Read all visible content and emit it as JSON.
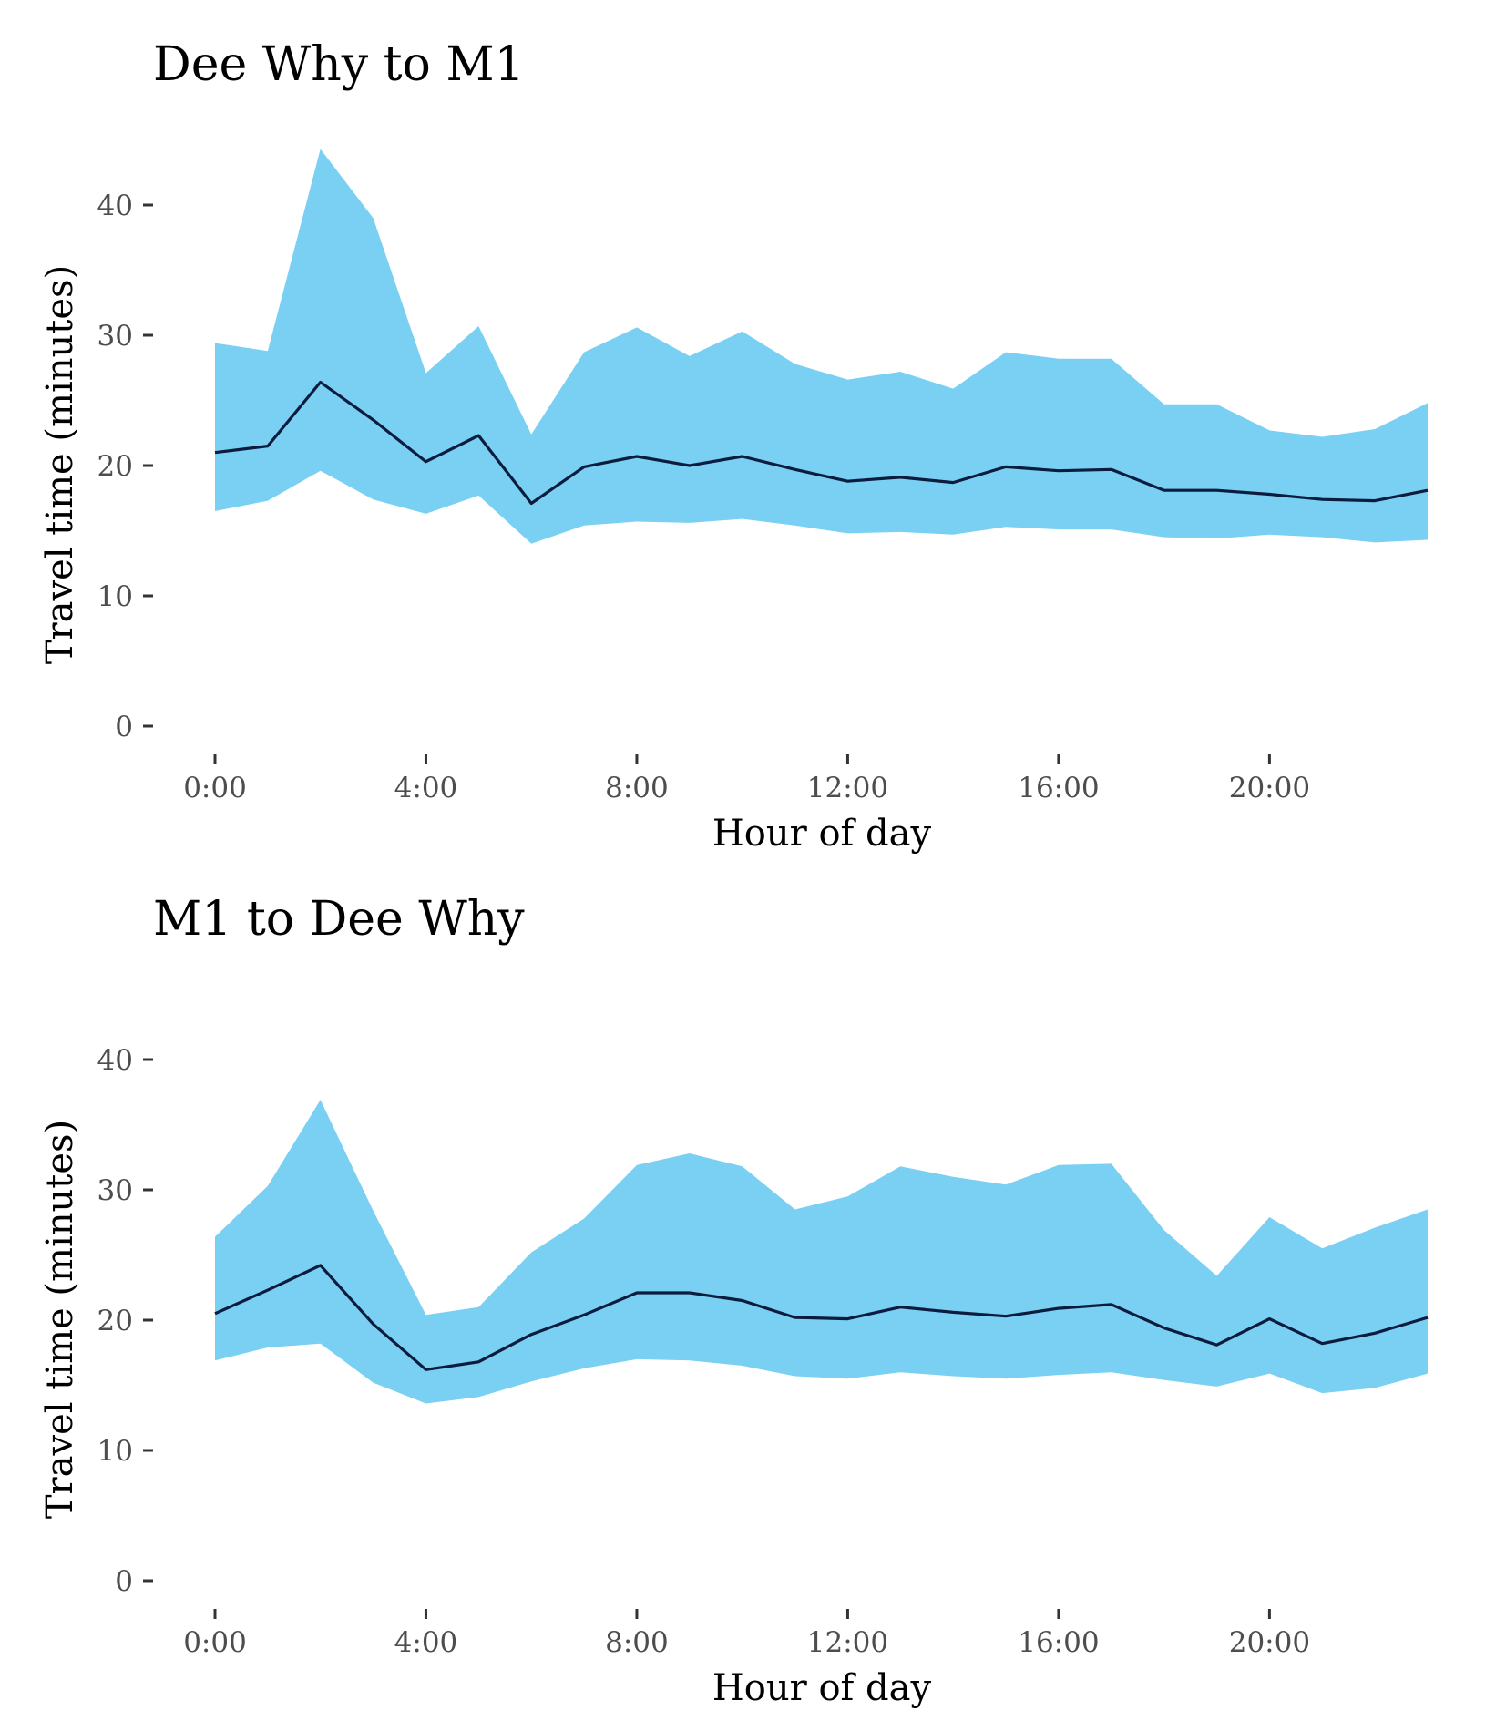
{
  "colors": {
    "band": "#7ad0f2",
    "line": "#0c1c3e",
    "tick_text": "#4d4d4d",
    "tick_mark": "#333333"
  },
  "chart_data": [
    {
      "type": "area",
      "title": "Dee Why to M1",
      "xlabel": "Hour of day",
      "ylabel": "Travel time (minutes)",
      "xlim": [
        0,
        23
      ],
      "ylim": [
        0,
        45
      ],
      "x_ticks": [
        0,
        4,
        8,
        12,
        16,
        20
      ],
      "x_tick_labels": [
        "0:00",
        "4:00",
        "8:00",
        "12:00",
        "16:00",
        "20:00"
      ],
      "y_ticks": [
        0,
        10,
        20,
        30,
        40
      ],
      "y_tick_labels": [
        "0",
        "10",
        "20",
        "30",
        "40"
      ],
      "grid": false,
      "legend": "none",
      "x": [
        0,
        1,
        2,
        3,
        4,
        5,
        6,
        7,
        8,
        9,
        10,
        11,
        12,
        13,
        14,
        15,
        16,
        17,
        18,
        19,
        20,
        21,
        22,
        23
      ],
      "line": [
        21.0,
        21.5,
        26.4,
        23.5,
        20.3,
        22.3,
        17.1,
        19.9,
        20.7,
        20.0,
        20.7,
        19.7,
        18.8,
        19.1,
        18.7,
        19.9,
        19.6,
        19.7,
        18.1,
        18.1,
        17.8,
        17.4,
        17.3,
        18.1
      ],
      "band_upper": [
        29.4,
        28.8,
        44.3,
        39.0,
        27.1,
        30.7,
        22.4,
        28.7,
        30.6,
        28.4,
        30.3,
        27.8,
        26.6,
        27.2,
        25.9,
        28.7,
        28.2,
        28.2,
        24.7,
        24.7,
        22.7,
        22.2,
        22.8,
        24.8
      ],
      "band_lower": [
        16.5,
        17.3,
        19.6,
        17.4,
        16.3,
        17.7,
        14.0,
        15.4,
        15.7,
        15.6,
        15.9,
        15.4,
        14.8,
        14.9,
        14.7,
        15.3,
        15.1,
        15.1,
        14.5,
        14.4,
        14.7,
        14.5,
        14.1,
        14.3
      ]
    },
    {
      "type": "area",
      "title": "M1 to Dee Why",
      "xlabel": "Hour of day",
      "ylabel": "Travel time (minutes)",
      "xlim": [
        0,
        23
      ],
      "ylim": [
        0,
        45
      ],
      "x_ticks": [
        0,
        4,
        8,
        12,
        16,
        20
      ],
      "x_tick_labels": [
        "0:00",
        "4:00",
        "8:00",
        "12:00",
        "16:00",
        "20:00"
      ],
      "y_ticks": [
        0,
        10,
        20,
        30,
        40
      ],
      "y_tick_labels": [
        "0",
        "10",
        "20",
        "30",
        "40"
      ],
      "grid": false,
      "legend": "none",
      "x": [
        0,
        1,
        2,
        3,
        4,
        5,
        6,
        7,
        8,
        9,
        10,
        11,
        12,
        13,
        14,
        15,
        16,
        17,
        18,
        19,
        20,
        21,
        22,
        23
      ],
      "line": [
        20.5,
        22.3,
        24.2,
        19.7,
        16.2,
        16.8,
        18.9,
        20.4,
        22.1,
        22.1,
        21.5,
        20.2,
        20.1,
        21.0,
        20.6,
        20.3,
        20.9,
        21.2,
        19.4,
        18.1,
        20.1,
        18.2,
        19.0,
        20.2
      ],
      "band_upper": [
        26.4,
        30.3,
        36.9,
        28.4,
        20.4,
        21.0,
        25.2,
        27.8,
        31.9,
        32.8,
        31.8,
        28.5,
        29.5,
        31.8,
        31.0,
        30.4,
        31.9,
        32.0,
        26.9,
        23.4,
        27.9,
        25.5,
        27.1,
        28.5
      ],
      "band_lower": [
        16.9,
        17.9,
        18.2,
        15.2,
        13.6,
        14.1,
        15.3,
        16.3,
        17.0,
        16.9,
        16.5,
        15.7,
        15.5,
        16.0,
        15.7,
        15.5,
        15.8,
        16.0,
        15.4,
        14.9,
        15.9,
        14.4,
        14.8,
        15.9
      ]
    }
  ]
}
